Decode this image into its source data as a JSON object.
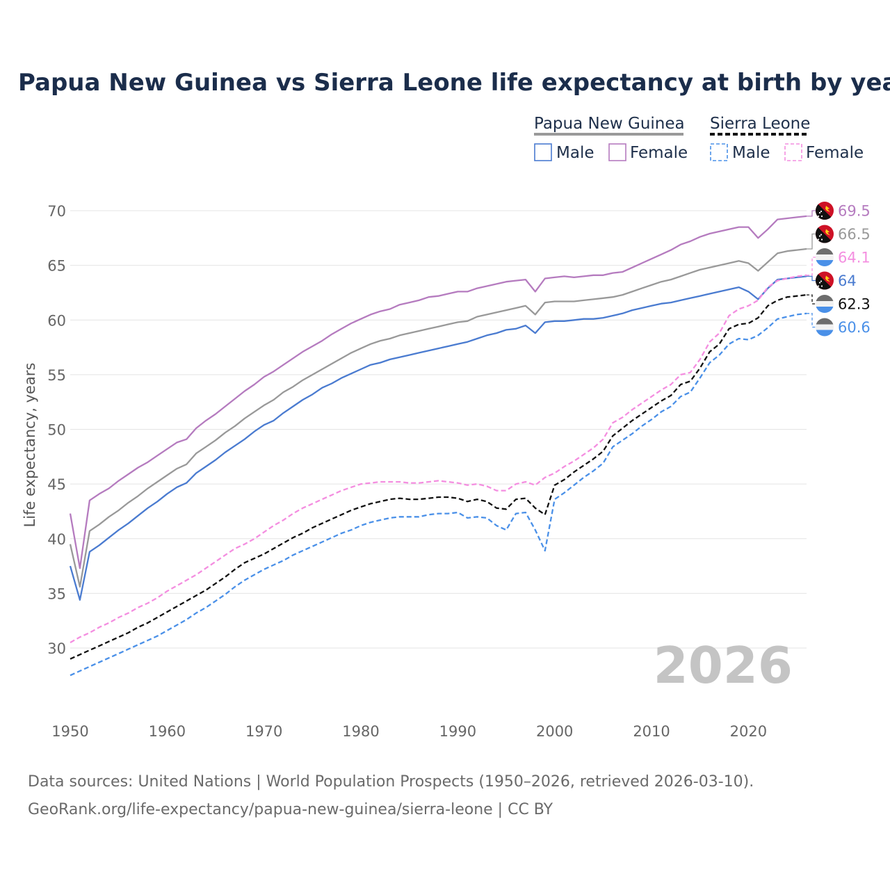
{
  "chart_data": {
    "type": "line",
    "title": "Papua New Guinea vs Sierra Leone life expectancy at birth by year",
    "ylabel": "Life expectancy, years",
    "xlabel": "",
    "xlim": [
      1950,
      2026
    ],
    "ylim": [
      26,
      73
    ],
    "x_ticks": [
      "1950",
      "1960",
      "1970",
      "1980",
      "1990",
      "2000",
      "2010",
      "2020"
    ],
    "y_ticks": [
      "30",
      "35",
      "40",
      "45",
      "50",
      "55",
      "60",
      "65",
      "70"
    ],
    "year_label": "2026",
    "legend": {
      "groups": [
        {
          "name": "Papua New Guinea",
          "style": "solid",
          "color": "#999999",
          "items": [
            {
              "label": "Male",
              "color": "#4a7bd0"
            },
            {
              "label": "Female",
              "color": "#b57bbf"
            }
          ]
        },
        {
          "name": "Sierra Leone",
          "style": "dashed",
          "color": "#111111",
          "items": [
            {
              "label": "Male",
              "color": "#4a90e8"
            },
            {
              "label": "Female",
              "color": "#f48ee0"
            }
          ]
        }
      ]
    },
    "x": [
      1950,
      1951,
      1952,
      1953,
      1954,
      1955,
      1956,
      1957,
      1958,
      1959,
      1960,
      1961,
      1962,
      1963,
      1964,
      1965,
      1966,
      1967,
      1968,
      1969,
      1970,
      1971,
      1972,
      1973,
      1974,
      1975,
      1976,
      1977,
      1978,
      1979,
      1980,
      1981,
      1982,
      1983,
      1984,
      1985,
      1986,
      1987,
      1988,
      1989,
      1990,
      1991,
      1992,
      1993,
      1994,
      1995,
      1996,
      1997,
      1998,
      1999,
      2000,
      2001,
      2002,
      2003,
      2004,
      2005,
      2006,
      2007,
      2008,
      2009,
      2010,
      2011,
      2012,
      2013,
      2014,
      2015,
      2016,
      2017,
      2018,
      2019,
      2020,
      2021,
      2022,
      2023,
      2024,
      2025,
      2026
    ],
    "series": [
      {
        "name": "Papua New Guinea Female",
        "country": "Papua New Guinea",
        "sex": "Female",
        "color": "#b57bbf",
        "dash": false,
        "end_label": "69.5",
        "values": [
          42.3,
          37.3,
          43.5,
          44.1,
          44.6,
          45.3,
          45.9,
          46.5,
          47.0,
          47.6,
          48.2,
          48.8,
          49.1,
          50.1,
          50.8,
          51.4,
          52.1,
          52.8,
          53.5,
          54.1,
          54.8,
          55.3,
          55.9,
          56.5,
          57.1,
          57.6,
          58.1,
          58.7,
          59.2,
          59.7,
          60.1,
          60.5,
          60.8,
          61.0,
          61.4,
          61.6,
          61.8,
          62.1,
          62.2,
          62.4,
          62.6,
          62.6,
          62.9,
          63.1,
          63.3,
          63.5,
          63.6,
          63.7,
          62.6,
          63.8,
          63.9,
          64.0,
          63.9,
          64.0,
          64.1,
          64.1,
          64.3,
          64.4,
          64.8,
          65.2,
          65.6,
          66.0,
          66.4,
          66.9,
          67.2,
          67.6,
          67.9,
          68.1,
          68.3,
          68.5,
          68.5,
          67.5,
          68.3,
          69.2,
          69.3,
          69.4,
          69.5
        ]
      },
      {
        "name": "Papua New Guinea",
        "country": "Papua New Guinea",
        "sex": "Total",
        "color": "#999999",
        "dash": false,
        "end_label": "66.5",
        "values": [
          39.5,
          35.6,
          40.7,
          41.3,
          42.0,
          42.6,
          43.3,
          43.9,
          44.6,
          45.2,
          45.8,
          46.4,
          46.8,
          47.8,
          48.4,
          49.0,
          49.7,
          50.3,
          51.0,
          51.6,
          52.2,
          52.7,
          53.4,
          53.9,
          54.5,
          55.0,
          55.5,
          56.0,
          56.5,
          57.0,
          57.4,
          57.8,
          58.1,
          58.3,
          58.6,
          58.8,
          59.0,
          59.2,
          59.4,
          59.6,
          59.8,
          59.9,
          60.3,
          60.5,
          60.7,
          60.9,
          61.1,
          61.3,
          60.5,
          61.6,
          61.7,
          61.7,
          61.7,
          61.8,
          61.9,
          62.0,
          62.1,
          62.3,
          62.6,
          62.9,
          63.2,
          63.5,
          63.7,
          64.0,
          64.3,
          64.6,
          64.8,
          65.0,
          65.2,
          65.4,
          65.2,
          64.5,
          65.3,
          66.1,
          66.3,
          66.4,
          66.5
        ]
      },
      {
        "name": "Papua New Guinea Male",
        "country": "Papua New Guinea",
        "sex": "Male",
        "color": "#4a7bd0",
        "dash": false,
        "end_label": "64",
        "values": [
          37.5,
          34.4,
          38.8,
          39.4,
          40.1,
          40.8,
          41.4,
          42.1,
          42.8,
          43.4,
          44.1,
          44.7,
          45.1,
          46.0,
          46.6,
          47.2,
          47.9,
          48.5,
          49.1,
          49.8,
          50.4,
          50.8,
          51.5,
          52.1,
          52.7,
          53.2,
          53.8,
          54.2,
          54.7,
          55.1,
          55.5,
          55.9,
          56.1,
          56.4,
          56.6,
          56.8,
          57.0,
          57.2,
          57.4,
          57.6,
          57.8,
          58.0,
          58.3,
          58.6,
          58.8,
          59.1,
          59.2,
          59.5,
          58.8,
          59.8,
          59.9,
          59.9,
          60.0,
          60.1,
          60.1,
          60.2,
          60.4,
          60.6,
          60.9,
          61.1,
          61.3,
          61.5,
          61.6,
          61.8,
          62.0,
          62.2,
          62.4,
          62.6,
          62.8,
          63.0,
          62.6,
          61.9,
          62.9,
          63.7,
          63.8,
          63.9,
          64.0
        ]
      },
      {
        "name": "Sierra Leone Female",
        "country": "Sierra Leone",
        "sex": "Female",
        "color": "#f48ee0",
        "dash": true,
        "end_label": "64.1",
        "values": [
          30.5,
          31.0,
          31.4,
          31.9,
          32.3,
          32.8,
          33.2,
          33.7,
          34.1,
          34.6,
          35.2,
          35.7,
          36.2,
          36.7,
          37.3,
          37.9,
          38.5,
          39.1,
          39.5,
          40.0,
          40.6,
          41.2,
          41.7,
          42.3,
          42.8,
          43.2,
          43.6,
          44.0,
          44.4,
          44.7,
          45.0,
          45.1,
          45.2,
          45.2,
          45.2,
          45.1,
          45.1,
          45.2,
          45.3,
          45.2,
          45.1,
          44.9,
          45.0,
          44.8,
          44.4,
          44.4,
          45.0,
          45.2,
          44.9,
          45.6,
          46.0,
          46.6,
          47.1,
          47.7,
          48.3,
          49.1,
          50.6,
          51.1,
          51.8,
          52.4,
          53.0,
          53.6,
          54.1,
          55.0,
          55.2,
          56.4,
          58.0,
          58.8,
          60.4,
          61.0,
          61.3,
          61.8,
          63.0,
          63.6,
          63.8,
          64.0,
          64.1
        ]
      },
      {
        "name": "Sierra Leone",
        "country": "Sierra Leone",
        "sex": "Total",
        "color": "#111111",
        "dash": true,
        "end_label": "62.3",
        "values": [
          29.0,
          29.4,
          29.8,
          30.2,
          30.6,
          31.0,
          31.4,
          31.9,
          32.3,
          32.8,
          33.3,
          33.8,
          34.3,
          34.8,
          35.3,
          35.9,
          36.5,
          37.2,
          37.8,
          38.2,
          38.6,
          39.1,
          39.6,
          40.1,
          40.5,
          41.0,
          41.4,
          41.8,
          42.2,
          42.6,
          42.9,
          43.2,
          43.4,
          43.6,
          43.7,
          43.6,
          43.6,
          43.7,
          43.8,
          43.8,
          43.7,
          43.4,
          43.6,
          43.4,
          42.8,
          42.7,
          43.6,
          43.7,
          42.8,
          42.2,
          44.9,
          45.4,
          46.1,
          46.7,
          47.3,
          48.0,
          49.4,
          50.1,
          50.8,
          51.4,
          52.0,
          52.6,
          53.1,
          54.1,
          54.4,
          55.6,
          57.1,
          57.8,
          59.2,
          59.6,
          59.7,
          60.2,
          61.3,
          61.8,
          62.1,
          62.2,
          62.3
        ]
      },
      {
        "name": "Sierra Leone Male",
        "country": "Sierra Leone",
        "sex": "Male",
        "color": "#4a90e8",
        "dash": true,
        "end_label": "60.6",
        "values": [
          27.5,
          27.9,
          28.3,
          28.7,
          29.1,
          29.5,
          29.9,
          30.3,
          30.7,
          31.1,
          31.6,
          32.1,
          32.6,
          33.2,
          33.7,
          34.3,
          34.9,
          35.6,
          36.2,
          36.7,
          37.2,
          37.6,
          38.0,
          38.5,
          38.9,
          39.3,
          39.7,
          40.1,
          40.5,
          40.8,
          41.2,
          41.5,
          41.7,
          41.9,
          42.0,
          42.0,
          42.0,
          42.2,
          42.3,
          42.3,
          42.4,
          41.9,
          42.0,
          41.9,
          41.2,
          40.8,
          42.3,
          42.4,
          40.8,
          38.9,
          43.6,
          44.2,
          44.9,
          45.6,
          46.2,
          46.9,
          48.4,
          49.0,
          49.6,
          50.3,
          50.9,
          51.6,
          52.1,
          53.0,
          53.4,
          54.7,
          56.1,
          56.8,
          57.8,
          58.3,
          58.2,
          58.6,
          59.3,
          60.1,
          60.3,
          60.5,
          60.6
        ]
      }
    ]
  },
  "source": {
    "line1": "Data sources: United Nations | World Population Prospects (1950–2026, retrieved 2026-03-10).",
    "line2": "GeoRank.org/life-expectancy/papua-new-guinea/sierra-leone | CC BY"
  }
}
